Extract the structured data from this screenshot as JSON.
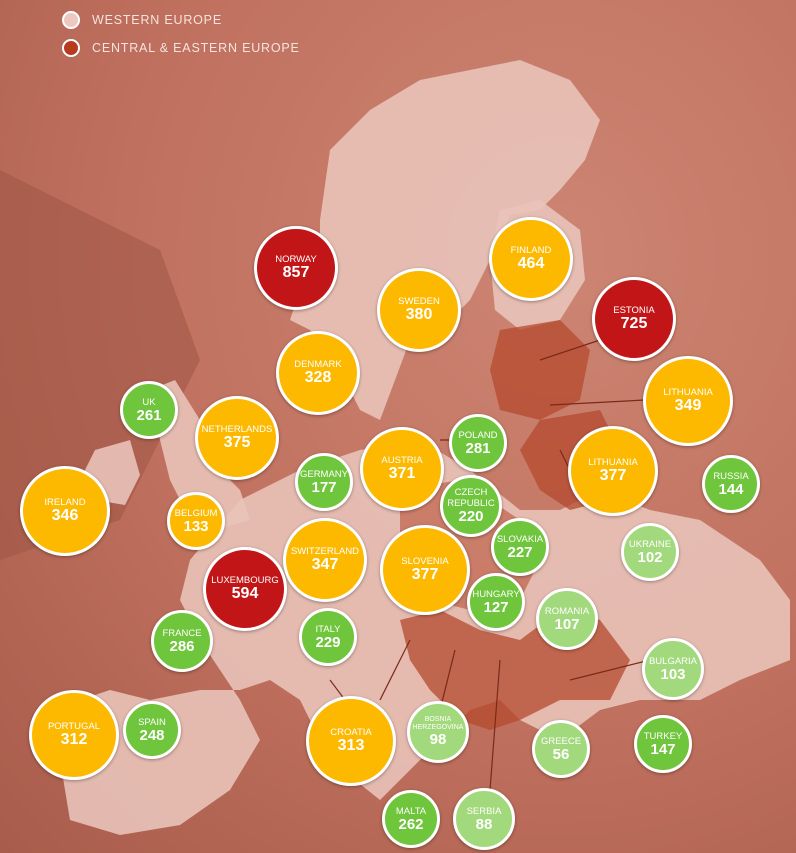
{
  "legend": [
    {
      "label": "WESTERN EUROPE",
      "color": "#ecc8c0"
    },
    {
      "label": "CENTRAL & EASTERN EUROPE",
      "color": "#b83a1f"
    }
  ],
  "colors": {
    "red": "#c21517",
    "yellow": "#fcb900",
    "green": "#6fc53b",
    "light_green": "#a2d97c"
  },
  "countries": [
    {
      "id": "norway",
      "name": "NORWAY",
      "value": "857",
      "color": "red"
    },
    {
      "id": "finland",
      "name": "FINLAND",
      "value": "464",
      "color": "yellow"
    },
    {
      "id": "sweden",
      "name": "SWEDEN",
      "value": "380",
      "color": "yellow"
    },
    {
      "id": "estonia",
      "name": "ESTONIA",
      "value": "725",
      "color": "red"
    },
    {
      "id": "denmark",
      "name": "DENMARK",
      "value": "328",
      "color": "yellow"
    },
    {
      "id": "lithuania-1",
      "name": "LITHUANIA",
      "value": "349",
      "color": "yellow"
    },
    {
      "id": "uk",
      "name": "UK",
      "value": "261",
      "color": "green"
    },
    {
      "id": "netherlands",
      "name": "NETHERLANDS",
      "value": "375",
      "color": "yellow"
    },
    {
      "id": "poland",
      "name": "POLAND",
      "value": "281",
      "color": "green"
    },
    {
      "id": "germany",
      "name": "GERMANY",
      "value": "177",
      "color": "green"
    },
    {
      "id": "austria",
      "name": "AUSTRIA",
      "value": "371",
      "color": "yellow"
    },
    {
      "id": "lithuania-2",
      "name": "LITHUANIA",
      "value": "377",
      "color": "yellow"
    },
    {
      "id": "russia",
      "name": "RUSSIA",
      "value": "144",
      "color": "green"
    },
    {
      "id": "ireland",
      "name": "IRELAND",
      "value": "346",
      "color": "yellow"
    },
    {
      "id": "belgium",
      "name": "BELGIUM",
      "value": "133",
      "color": "yellow"
    },
    {
      "id": "czech-republic",
      "name": "CZECH\nREPUBLIC",
      "value": "220",
      "color": "green"
    },
    {
      "id": "slovakia",
      "name": "SLOVAKIA",
      "value": "227",
      "color": "green"
    },
    {
      "id": "ukraine",
      "name": "UKRAINE",
      "value": "102",
      "color": "light_green"
    },
    {
      "id": "switzerland",
      "name": "SWITZERLAND",
      "value": "347",
      "color": "yellow"
    },
    {
      "id": "slovenia",
      "name": "SLOVENIA",
      "value": "377",
      "color": "yellow"
    },
    {
      "id": "luxembourg",
      "name": "LUXEMBOURG",
      "value": "594",
      "color": "red"
    },
    {
      "id": "hungary",
      "name": "HUNGARY",
      "value": "127",
      "color": "green"
    },
    {
      "id": "romania",
      "name": "ROMANIA",
      "value": "107",
      "color": "light_green"
    },
    {
      "id": "france",
      "name": "FRANCE",
      "value": "286",
      "color": "green"
    },
    {
      "id": "italy",
      "name": "ITALY",
      "value": "229",
      "color": "green"
    },
    {
      "id": "bulgaria",
      "name": "BULGARIA",
      "value": "103",
      "color": "light_green"
    },
    {
      "id": "portugal",
      "name": "PORTUGAL",
      "value": "312",
      "color": "yellow"
    },
    {
      "id": "spain",
      "name": "SPAIN",
      "value": "248",
      "color": "green"
    },
    {
      "id": "croatia",
      "name": "CROATIA",
      "value": "313",
      "color": "yellow"
    },
    {
      "id": "bosnia-herzegovina",
      "name": "BOSNIA\nHERZEGOVINA",
      "value": "98",
      "color": "light_green"
    },
    {
      "id": "greece",
      "name": "GREECE",
      "value": "56",
      "color": "light_green"
    },
    {
      "id": "turkey",
      "name": "TURKEY",
      "value": "147",
      "color": "green"
    },
    {
      "id": "malta",
      "name": "MALTA",
      "value": "262",
      "color": "green"
    },
    {
      "id": "serbia",
      "name": "SERBIA",
      "value": "88",
      "color": "light_green"
    }
  ]
}
